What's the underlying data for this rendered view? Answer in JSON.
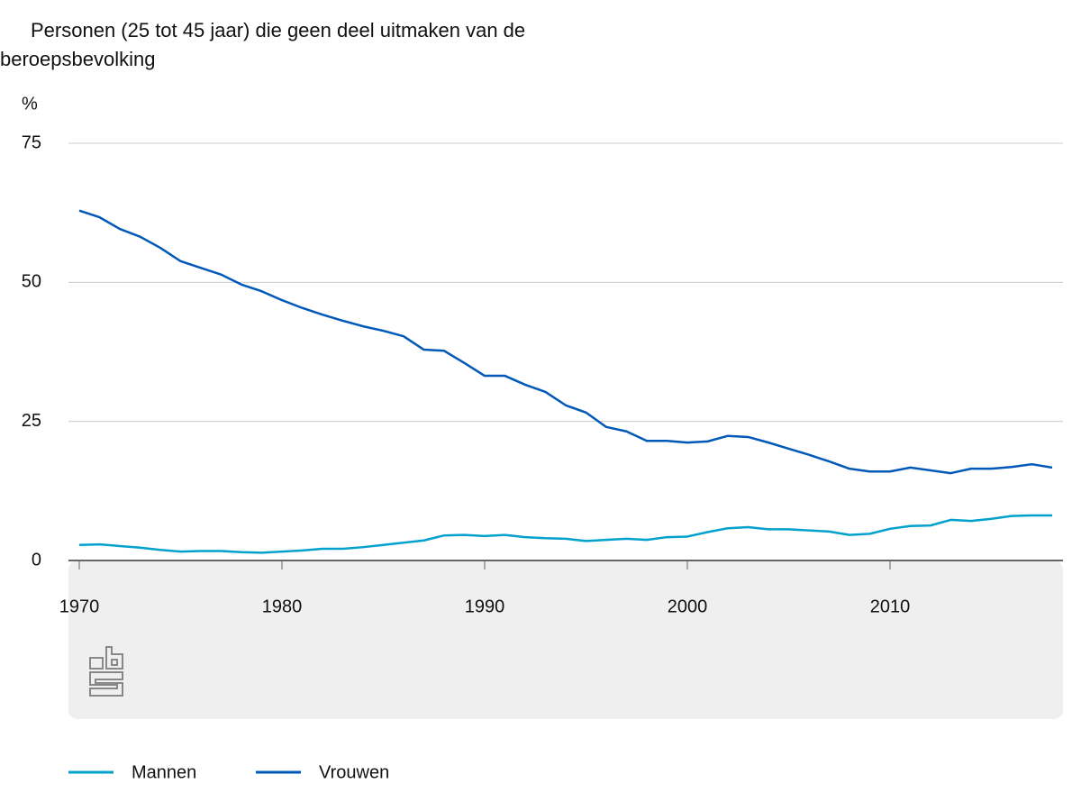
{
  "chart_data": {
    "type": "line",
    "title": "Personen (25 tot 45 jaar) die geen deel uitmaken van de beroepsbevolking",
    "y_unit": "%",
    "x": [
      1970,
      1971,
      1972,
      1973,
      1974,
      1975,
      1976,
      1977,
      1978,
      1979,
      1980,
      1981,
      1982,
      1983,
      1984,
      1985,
      1986,
      1987,
      1988,
      1989,
      1990,
      1991,
      1992,
      1993,
      1994,
      1995,
      1996,
      1997,
      1998,
      1999,
      2000,
      2001,
      2002,
      2003,
      2004,
      2005,
      2006,
      2007,
      2008,
      2009,
      2010,
      2011,
      2012,
      2013,
      2014,
      2015,
      2016,
      2017,
      2018
    ],
    "series": [
      {
        "name": "Mannen",
        "color": "#00a1cd",
        "values": [
          2.8,
          2.9,
          2.6,
          2.3,
          1.9,
          1.6,
          1.7,
          1.7,
          1.5,
          1.4,
          1.6,
          1.8,
          2.1,
          2.1,
          2.4,
          2.8,
          3.2,
          3.6,
          4.5,
          4.6,
          4.4,
          4.6,
          4.2,
          4.0,
          3.9,
          3.5,
          3.7,
          3.9,
          3.7,
          4.2,
          4.3,
          5.1,
          5.8,
          6.0,
          5.6,
          5.6,
          5.4,
          5.2,
          4.6,
          4.8,
          5.7,
          6.2,
          6.3,
          7.3,
          7.1,
          7.5,
          8.0,
          8.1,
          8.1
        ]
      },
      {
        "name": "Vrouwen",
        "color": "#0058b8",
        "values": [
          62.9,
          61.7,
          59.6,
          58.2,
          56.2,
          53.8,
          52.6,
          51.4,
          49.6,
          48.4,
          46.8,
          45.4,
          44.2,
          43.1,
          42.1,
          41.3,
          40.3,
          37.9,
          37.7,
          35.5,
          33.2,
          33.2,
          31.6,
          30.3,
          27.9,
          26.6,
          24.0,
          23.2,
          21.5,
          21.5,
          21.2,
          21.4,
          22.4,
          22.2,
          21.2,
          20.1,
          19.0,
          17.8,
          16.5,
          16.0,
          16.0,
          16.7,
          16.2,
          15.7,
          16.5,
          16.5,
          16.8,
          17.3,
          16.7
        ]
      }
    ],
    "xlim": [
      1970,
      2018
    ],
    "xticks": [
      1970,
      1980,
      1990,
      2000,
      2010
    ],
    "ylim": [
      0,
      75
    ],
    "yticks": [
      0,
      25,
      50,
      75
    ],
    "grid": true
  }
}
